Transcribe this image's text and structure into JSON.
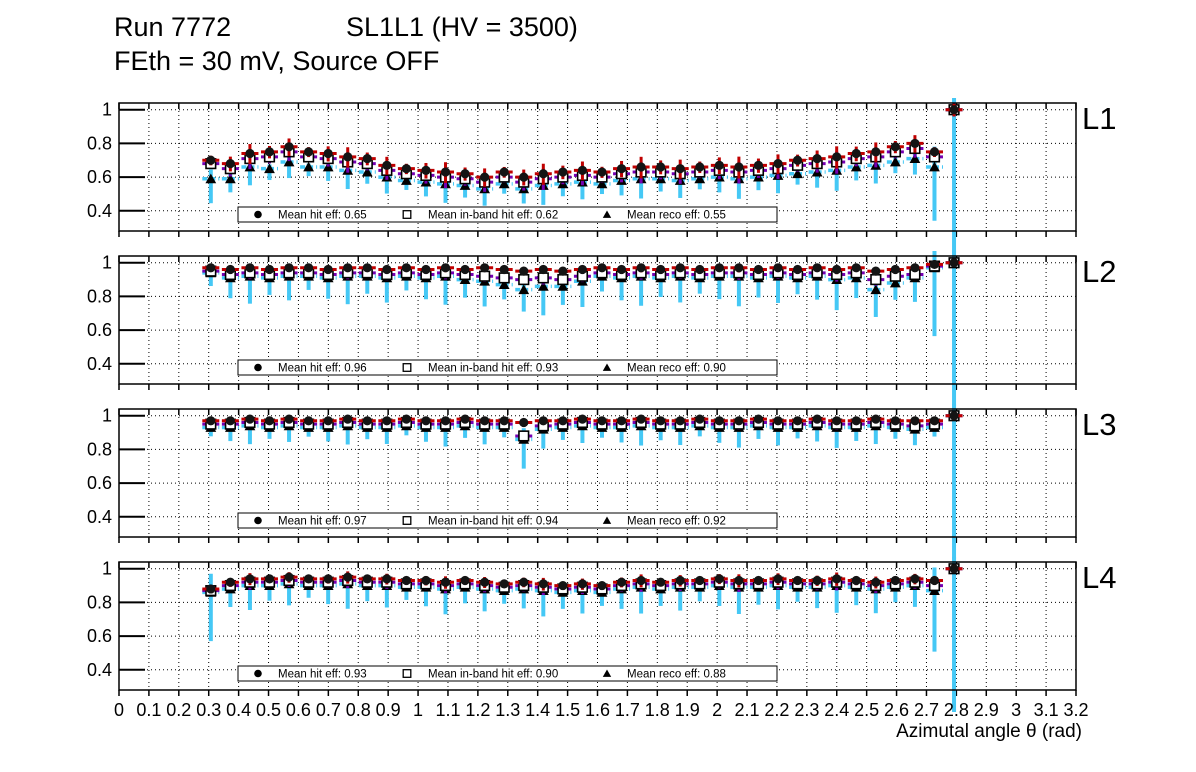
{
  "title": {
    "run": "Run 7772",
    "detector": "SL1L1 (HV = 3500)",
    "line2": "FEth = 30 mV, Source OFF"
  },
  "axis": {
    "x_title": "Azimutal angle θ (rad)",
    "x_range": [
      0,
      3.2
    ],
    "y_range": [
      0.28,
      1.04
    ],
    "x_ticks": [
      "0",
      "0.1",
      "0.2",
      "0.3",
      "0.4",
      "0.5",
      "0.6",
      "0.7",
      "0.8",
      "0.9",
      "1",
      "1.1",
      "1.2",
      "1.3",
      "1.4",
      "1.5",
      "1.6",
      "1.7",
      "1.8",
      "1.9",
      "2",
      "2.1",
      "2.2",
      "2.3",
      "2.4",
      "2.5",
      "2.6",
      "2.7",
      "2.8",
      "2.9",
      "3",
      "3.1",
      "3.2"
    ],
    "y_ticks": [
      "0.4",
      "0.6",
      "0.8",
      "1"
    ],
    "grid": "dotted"
  },
  "colors": {
    "hit_errbar": "#c00000",
    "inband_errbar": "#7500b2",
    "reco_errbar": "#45c8f5",
    "marker": "#000000",
    "background": "#ffffff"
  },
  "chart_data": [
    {
      "label": "L1",
      "type": "scatter",
      "x_start": 0.307,
      "x_step": 0.0654,
      "n_points": 39,
      "legend": [
        {
          "marker": "filled-circle",
          "label": "Mean hit  eff: 0.65"
        },
        {
          "marker": "open-square",
          "label": "Mean in-band hit eff: 0.62"
        },
        {
          "marker": "filled-triangle",
          "label": "Mean reco eff: 0.55"
        }
      ],
      "series": [
        {
          "name": "Mean hit eff",
          "mean": 0.65,
          "marker": "filled-circle",
          "color": "#c00000",
          "err": 0.05,
          "err_last": 0.04,
          "values": [
            0.7,
            0.68,
            0.74,
            0.75,
            0.78,
            0.75,
            0.74,
            0.72,
            0.71,
            0.67,
            0.65,
            0.64,
            0.63,
            0.62,
            0.6,
            0.63,
            0.6,
            0.62,
            0.63,
            0.64,
            0.63,
            0.65,
            0.66,
            0.66,
            0.65,
            0.66,
            0.67,
            0.66,
            0.67,
            0.68,
            0.7,
            0.71,
            0.72,
            0.74,
            0.75,
            0.78,
            0.8,
            0.75,
            1.0
          ]
        },
        {
          "name": "Mean in-band hit eff",
          "mean": 0.62,
          "marker": "open-square",
          "color": "#7500b2",
          "err": 0.05,
          "err_last": 0.04,
          "values": [
            0.68,
            0.65,
            0.71,
            0.72,
            0.75,
            0.72,
            0.71,
            0.69,
            0.68,
            0.64,
            0.62,
            0.61,
            0.6,
            0.59,
            0.57,
            0.6,
            0.57,
            0.59,
            0.6,
            0.61,
            0.6,
            0.62,
            0.63,
            0.63,
            0.62,
            0.63,
            0.64,
            0.63,
            0.64,
            0.65,
            0.67,
            0.68,
            0.69,
            0.71,
            0.72,
            0.75,
            0.77,
            0.72,
            1.0
          ]
        },
        {
          "name": "Mean reco eff",
          "mean": 0.55,
          "marker": "filled-triangle",
          "color": "#45c8f5",
          "err": 0.06,
          "err_last": 0.72,
          "err_spikes": {
            "0": 0.1,
            "37": 0.22
          },
          "values": [
            0.59,
            0.59,
            0.66,
            0.65,
            0.69,
            0.66,
            0.66,
            0.64,
            0.63,
            0.6,
            0.58,
            0.57,
            0.56,
            0.55,
            0.53,
            0.56,
            0.53,
            0.55,
            0.56,
            0.57,
            0.56,
            0.58,
            0.59,
            0.59,
            0.58,
            0.59,
            0.6,
            0.59,
            0.6,
            0.61,
            0.62,
            0.63,
            0.64,
            0.66,
            0.67,
            0.69,
            0.71,
            0.66,
            1.0
          ]
        }
      ]
    },
    {
      "label": "L2",
      "type": "scatter",
      "x_start": 0.307,
      "x_step": 0.0654,
      "n_points": 39,
      "legend": [
        {
          "marker": "filled-circle",
          "label": "Mean hit  eff: 0.96"
        },
        {
          "marker": "open-square",
          "label": "Mean in-band hit eff: 0.93"
        },
        {
          "marker": "filled-triangle",
          "label": "Mean reco eff: 0.90"
        }
      ],
      "series": [
        {
          "name": "Mean hit eff",
          "mean": 0.96,
          "marker": "filled-circle",
          "color": "#c00000",
          "err": 0.02,
          "err_last": 0.02,
          "values": [
            0.97,
            0.96,
            0.97,
            0.96,
            0.97,
            0.97,
            0.96,
            0.97,
            0.97,
            0.96,
            0.97,
            0.96,
            0.97,
            0.96,
            0.97,
            0.96,
            0.95,
            0.96,
            0.95,
            0.96,
            0.97,
            0.96,
            0.97,
            0.96,
            0.97,
            0.96,
            0.97,
            0.97,
            0.96,
            0.97,
            0.96,
            0.97,
            0.96,
            0.97,
            0.95,
            0.96,
            0.97,
            0.99,
            1.0
          ]
        },
        {
          "name": "Mean in-band hit eff",
          "mean": 0.93,
          "marker": "open-square",
          "color": "#7500b2",
          "err": 0.03,
          "err_last": 0.03,
          "values": [
            0.95,
            0.93,
            0.94,
            0.93,
            0.94,
            0.94,
            0.93,
            0.94,
            0.94,
            0.93,
            0.94,
            0.93,
            0.94,
            0.93,
            0.92,
            0.91,
            0.9,
            0.91,
            0.9,
            0.92,
            0.94,
            0.93,
            0.94,
            0.93,
            0.94,
            0.93,
            0.94,
            0.94,
            0.93,
            0.94,
            0.93,
            0.94,
            0.93,
            0.94,
            0.9,
            0.92,
            0.93,
            0.98,
            1.0
          ]
        },
        {
          "name": "Mean reco eff",
          "mean": 0.9,
          "marker": "filled-triangle",
          "color": "#45c8f5",
          "err": 0.09,
          "err_last": 0.8,
          "err_spikes": {
            "37": 0.28
          },
          "values": [
            0.94,
            0.91,
            0.92,
            0.91,
            0.92,
            0.92,
            0.91,
            0.92,
            0.92,
            0.91,
            0.92,
            0.91,
            0.92,
            0.9,
            0.89,
            0.87,
            0.84,
            0.86,
            0.86,
            0.89,
            0.92,
            0.91,
            0.92,
            0.91,
            0.92,
            0.91,
            0.92,
            0.92,
            0.91,
            0.92,
            0.91,
            0.92,
            0.9,
            0.91,
            0.84,
            0.88,
            0.91,
            0.97,
            1.0
          ]
        }
      ]
    },
    {
      "label": "L3",
      "type": "scatter",
      "x_start": 0.307,
      "x_step": 0.0654,
      "n_points": 39,
      "legend": [
        {
          "marker": "filled-circle",
          "label": "Mean hit  eff: 0.97"
        },
        {
          "marker": "open-square",
          "label": "Mean in-band hit eff: 0.94"
        },
        {
          "marker": "filled-triangle",
          "label": "Mean reco eff: 0.92"
        }
      ],
      "series": [
        {
          "name": "Mean hit eff",
          "mean": 0.97,
          "marker": "filled-circle",
          "color": "#c00000",
          "err": 0.018,
          "err_last": 0.02,
          "values": [
            0.97,
            0.97,
            0.98,
            0.97,
            0.98,
            0.97,
            0.97,
            0.98,
            0.97,
            0.97,
            0.98,
            0.97,
            0.97,
            0.98,
            0.97,
            0.97,
            0.96,
            0.97,
            0.97,
            0.98,
            0.97,
            0.97,
            0.98,
            0.97,
            0.97,
            0.98,
            0.97,
            0.97,
            0.98,
            0.97,
            0.97,
            0.98,
            0.97,
            0.97,
            0.98,
            0.97,
            0.97,
            0.97,
            1.0
          ]
        },
        {
          "name": "Mean in-band hit eff",
          "mean": 0.94,
          "marker": "open-square",
          "color": "#7500b2",
          "err": 0.025,
          "err_last": 0.025,
          "values": [
            0.95,
            0.95,
            0.96,
            0.95,
            0.96,
            0.95,
            0.95,
            0.96,
            0.95,
            0.95,
            0.96,
            0.95,
            0.95,
            0.96,
            0.95,
            0.95,
            0.88,
            0.94,
            0.95,
            0.96,
            0.95,
            0.95,
            0.96,
            0.95,
            0.95,
            0.96,
            0.95,
            0.95,
            0.96,
            0.95,
            0.95,
            0.96,
            0.95,
            0.95,
            0.96,
            0.95,
            0.94,
            0.95,
            1.0
          ]
        },
        {
          "name": "Mean reco eff",
          "mean": 0.92,
          "marker": "filled-triangle",
          "color": "#45c8f5",
          "err": 0.06,
          "err_last": 0.7,
          "err_spikes": {
            "16": 0.12
          },
          "values": [
            0.93,
            0.93,
            0.94,
            0.93,
            0.94,
            0.93,
            0.93,
            0.94,
            0.93,
            0.93,
            0.94,
            0.93,
            0.93,
            0.94,
            0.93,
            0.93,
            0.86,
            0.92,
            0.93,
            0.94,
            0.93,
            0.93,
            0.94,
            0.93,
            0.93,
            0.94,
            0.93,
            0.93,
            0.94,
            0.93,
            0.93,
            0.94,
            0.93,
            0.93,
            0.94,
            0.93,
            0.92,
            0.93,
            1.0
          ]
        }
      ]
    },
    {
      "label": "L4",
      "type": "scatter",
      "x_start": 0.307,
      "x_step": 0.0654,
      "n_points": 39,
      "legend": [
        {
          "marker": "filled-circle",
          "label": "Mean hit  eff: 0.93"
        },
        {
          "marker": "open-square",
          "label": "Mean in-band hit eff: 0.90"
        },
        {
          "marker": "filled-triangle",
          "label": "Mean reco eff: 0.88"
        }
      ],
      "series": [
        {
          "name": "Mean hit eff",
          "mean": 0.93,
          "marker": "filled-circle",
          "color": "#c00000",
          "err": 0.03,
          "err_last": 0.02,
          "values": [
            0.88,
            0.92,
            0.94,
            0.94,
            0.95,
            0.94,
            0.94,
            0.95,
            0.94,
            0.94,
            0.93,
            0.93,
            0.92,
            0.93,
            0.92,
            0.91,
            0.92,
            0.91,
            0.9,
            0.91,
            0.9,
            0.92,
            0.93,
            0.92,
            0.93,
            0.93,
            0.94,
            0.93,
            0.93,
            0.94,
            0.93,
            0.93,
            0.94,
            0.93,
            0.92,
            0.93,
            0.94,
            0.93,
            1.0
          ]
        },
        {
          "name": "Mean in-band hit eff",
          "mean": 0.9,
          "marker": "open-square",
          "color": "#7500b2",
          "err": 0.035,
          "err_last": 0.03,
          "values": [
            0.87,
            0.9,
            0.92,
            0.92,
            0.93,
            0.92,
            0.92,
            0.93,
            0.92,
            0.92,
            0.91,
            0.91,
            0.9,
            0.91,
            0.9,
            0.89,
            0.9,
            0.89,
            0.88,
            0.89,
            0.88,
            0.9,
            0.91,
            0.9,
            0.91,
            0.91,
            0.92,
            0.91,
            0.91,
            0.92,
            0.91,
            0.91,
            0.92,
            0.91,
            0.9,
            0.91,
            0.92,
            0.9,
            1.0
          ]
        },
        {
          "name": "Mean reco eff",
          "mean": 0.88,
          "marker": "filled-triangle",
          "color": "#45c8f5",
          "err": 0.08,
          "err_last": 0.8,
          "err_spikes": {
            "0": 0.2,
            "37": 0.25
          },
          "values": [
            0.86,
            0.88,
            0.9,
            0.9,
            0.91,
            0.9,
            0.9,
            0.91,
            0.9,
            0.9,
            0.89,
            0.89,
            0.88,
            0.89,
            0.88,
            0.87,
            0.88,
            0.87,
            0.86,
            0.87,
            0.86,
            0.88,
            0.89,
            0.88,
            0.89,
            0.89,
            0.9,
            0.89,
            0.89,
            0.9,
            0.89,
            0.89,
            0.9,
            0.89,
            0.88,
            0.89,
            0.9,
            0.87,
            1.0
          ]
        }
      ]
    }
  ]
}
